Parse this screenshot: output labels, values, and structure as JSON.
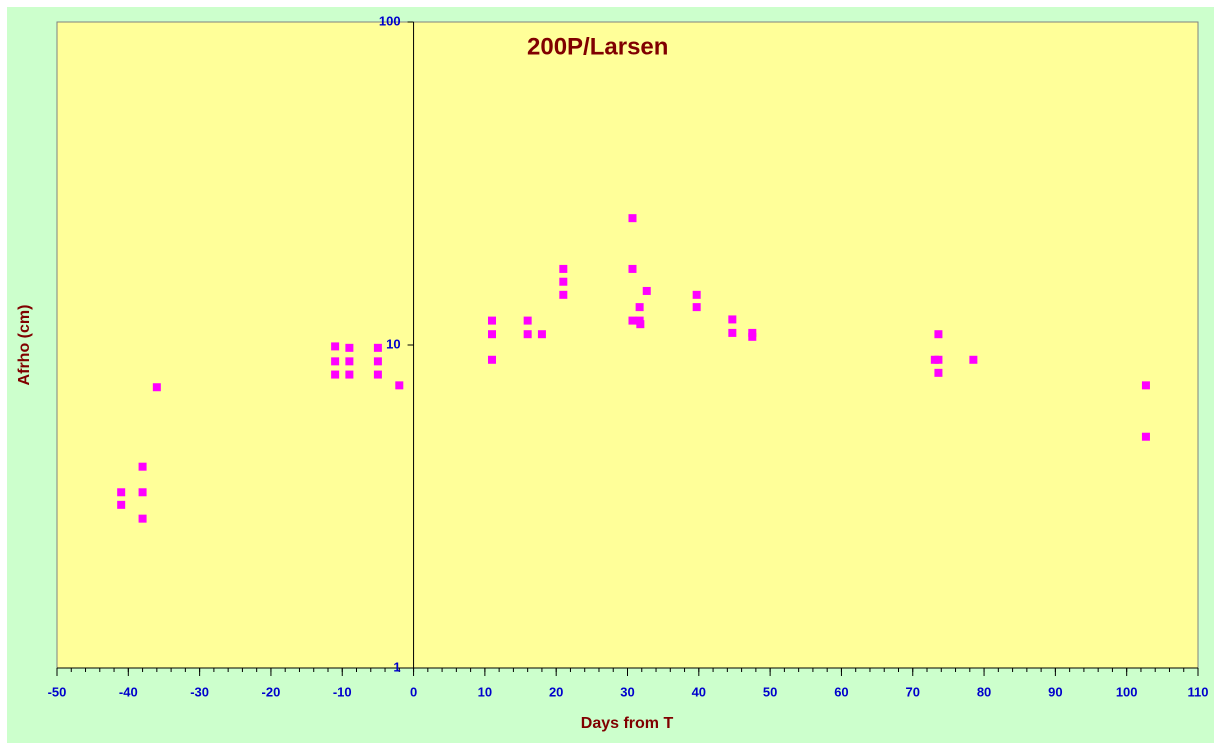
{
  "chart_data": {
    "type": "scatter",
    "title": "200P/Larsen",
    "x_label": "Days from T",
    "y_label": "Afrho (cm)",
    "x": [
      -41,
      -41,
      -38,
      -38,
      -38,
      -36,
      -11,
      -11,
      -11,
      -9,
      -9,
      -9,
      -5,
      -5,
      -5,
      -2,
      11,
      11,
      11,
      16,
      16,
      18,
      21,
      21,
      21,
      30.7,
      30.7,
      30.7,
      31.7,
      31.7,
      31.8,
      32.7,
      39.7,
      39.7,
      44.7,
      44.7,
      47.5,
      47.5,
      73.1,
      73.6,
      73.6,
      73.6,
      78.5,
      102.7,
      102.7
    ],
    "values": [
      3.2,
      3.5,
      4.2,
      3.5,
      2.9,
      7.4,
      9.9,
      8.9,
      8.1,
      9.8,
      8.9,
      8.1,
      9.8,
      8.9,
      8.1,
      7.5,
      11.9,
      10.8,
      9.0,
      11.9,
      10.8,
      10.8,
      17.2,
      15.7,
      14.3,
      24.7,
      17.2,
      11.9,
      13.1,
      11.9,
      11.6,
      14.7,
      14.3,
      13.1,
      12.0,
      10.9,
      10.9,
      10.6,
      9.0,
      9.0,
      10.8,
      8.2,
      9.0,
      7.5,
      5.2
    ],
    "color": "#ff00ff",
    "xlim": [
      -50,
      110
    ],
    "xticks": [
      -50,
      -40,
      -30,
      -20,
      -10,
      0,
      10,
      20,
      30,
      40,
      50,
      60,
      70,
      80,
      90,
      100,
      110
    ],
    "x_minor_step": 2,
    "ylim": [
      1,
      100
    ],
    "yticks": [
      1,
      10,
      100
    ],
    "y_log": true,
    "grid": false
  }
}
